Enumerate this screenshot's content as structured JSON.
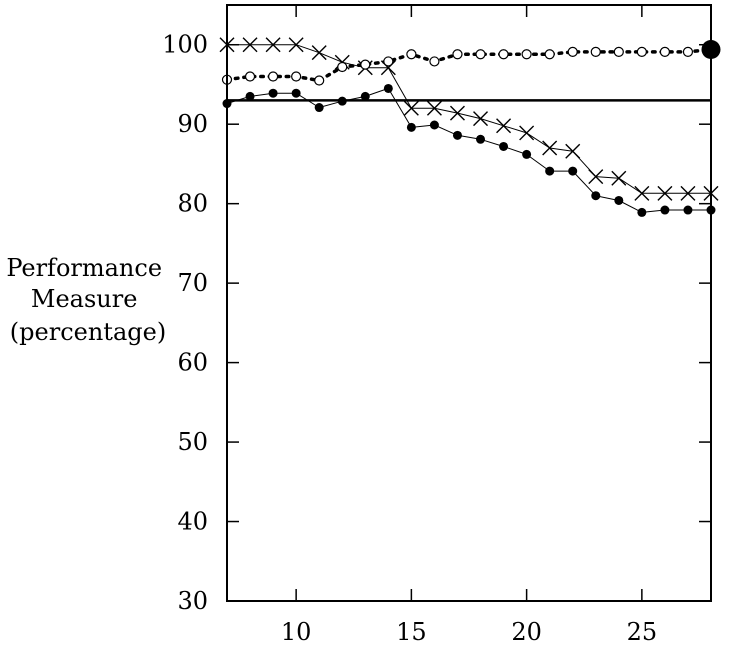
{
  "chart_data": {
    "type": "line",
    "title": "",
    "xlabel": "",
    "ylabel_lines": [
      "Performance",
      "Measure",
      "(percentage)"
    ],
    "xlim": [
      7,
      28
    ],
    "ylim": [
      30,
      105
    ],
    "x_ticks": [
      10,
      15,
      20,
      25
    ],
    "y_ticks": [
      30,
      40,
      50,
      60,
      70,
      80,
      90,
      100
    ],
    "x_tick_labels": [
      "10",
      "15",
      "20",
      "25"
    ],
    "y_tick_labels": [
      "30",
      "40",
      "50",
      "60",
      "70",
      "80",
      "90",
      "100"
    ],
    "grid": false,
    "legend": "none",
    "series": [
      {
        "marker": "cross",
        "line_style": "solid",
        "x": [
          7,
          8,
          9,
          10,
          11,
          12,
          13,
          14,
          15,
          16,
          17,
          18,
          19,
          20,
          21,
          22,
          23,
          24,
          25,
          26,
          27,
          28
        ],
        "y": [
          100,
          100,
          100,
          100,
          99,
          97.8,
          97.1,
          97.1,
          92,
          92,
          91.4,
          90.7,
          89.8,
          88.9,
          87,
          86.6,
          83.4,
          83.2,
          81.3,
          81.3,
          81.3,
          81.3
        ]
      },
      {
        "marker": "open-circle",
        "line_style": "dotted",
        "x": [
          7,
          8,
          9,
          10,
          11,
          12,
          13,
          14,
          15,
          16,
          17,
          18,
          19,
          20,
          21,
          22,
          23,
          24,
          25,
          26,
          27,
          28
        ],
        "y": [
          95.6,
          96,
          96,
          96,
          95.5,
          97.2,
          97.5,
          97.9,
          98.8,
          97.9,
          98.8,
          98.8,
          98.8,
          98.8,
          98.8,
          99.1,
          99.1,
          99.1,
          99.1,
          99.1,
          99.1,
          99.4
        ]
      },
      {
        "marker": "filled-circle",
        "line_style": "solid",
        "x": [
          7,
          8,
          9,
          10,
          11,
          12,
          13,
          14,
          15,
          16,
          17,
          18,
          19,
          20,
          21,
          22,
          23,
          24,
          25,
          26,
          27,
          28
        ],
        "y": [
          92.6,
          93.5,
          93.9,
          93.9,
          92.1,
          92.9,
          93.5,
          94.5,
          89.6,
          89.9,
          88.6,
          88.1,
          87.2,
          86.2,
          84.1,
          84.1,
          81,
          80.4,
          78.9,
          79.2,
          79.2,
          79.2
        ]
      },
      {
        "marker": "none",
        "line_style": "solid",
        "x": [
          7,
          28
        ],
        "y": [
          93,
          93
        ]
      }
    ],
    "highlight_point": {
      "x": 28,
      "y": 99.4,
      "marker": "large-filled-circle"
    }
  }
}
